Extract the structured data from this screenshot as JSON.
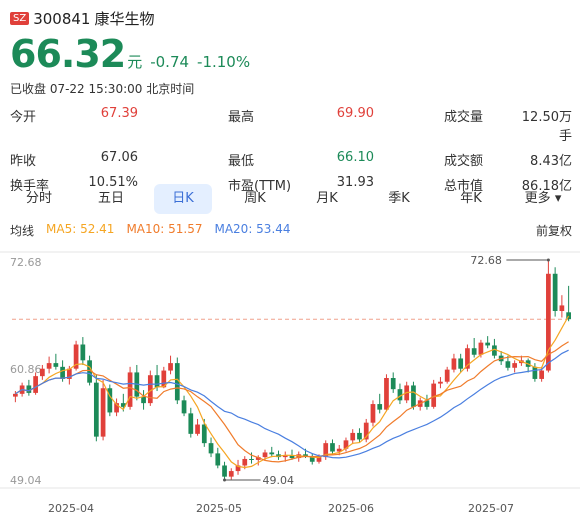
{
  "stock": {
    "market_badge": "SZ",
    "code": "300841",
    "name": "康华生物",
    "price": "66.32",
    "unit": "元",
    "change": "-0.74",
    "change_pct": "-1.10%",
    "status": "已收盘 07-22 15:30:00 北京时间"
  },
  "stats": [
    {
      "label": "今开",
      "value": "67.39",
      "color": "red"
    },
    {
      "label": "最高",
      "value": "69.90",
      "color": "red"
    },
    {
      "label": "成交量",
      "value": "12.50万手",
      "color": ""
    },
    {
      "label": "昨收",
      "value": "67.06",
      "color": ""
    },
    {
      "label": "最低",
      "value": "66.10",
      "color": "green"
    },
    {
      "label": "成交额",
      "value": "8.43亿",
      "color": ""
    },
    {
      "label": "换手率",
      "value": "10.51%",
      "color": ""
    },
    {
      "label": "市盈(TTM)",
      "value": "31.93",
      "color": ""
    },
    {
      "label": "总市值",
      "value": "86.18亿",
      "color": ""
    }
  ],
  "tabs": [
    "分时",
    "五日",
    "日K",
    "周K",
    "月K",
    "季K",
    "年K",
    "更多"
  ],
  "active_tab": "日K",
  "ma": {
    "title": "均线",
    "ma5": "MA5: 52.41",
    "ma10": "MA10: 51.57",
    "ma20": "MA20: 53.44",
    "adjust": "前复权",
    "colors": {
      "ma5": "#f5a623",
      "ma10": "#f07c2c",
      "ma20": "#4a7fe0"
    }
  },
  "chart_data": {
    "type": "candlestick",
    "y_max_label": "72.68",
    "y_mid_label": "60.86",
    "y_min_label": "49.04",
    "ylim": [
      49.04,
      72.68
    ],
    "high_marker": "72.68",
    "low_marker": "49.04",
    "x_ticks": [
      "2025-04",
      "2025-05",
      "2025-06",
      "2025-07"
    ],
    "last_close": 66.32,
    "colors": {
      "up": "#e0403a",
      "down": "#1c8a58"
    },
    "candles": [
      [
        58.0,
        58.6,
        57.4,
        58.3
      ],
      [
        58.3,
        59.5,
        58.0,
        59.2
      ],
      [
        59.2,
        59.8,
        58.1,
        58.4
      ],
      [
        58.4,
        60.6,
        58.2,
        60.2
      ],
      [
        60.2,
        61.4,
        59.8,
        61.0
      ],
      [
        61.0,
        62.3,
        60.5,
        61.6
      ],
      [
        61.6,
        62.6,
        60.9,
        61.2
      ],
      [
        61.2,
        61.9,
        59.6,
        59.9
      ],
      [
        59.9,
        61.3,
        59.3,
        61.0
      ],
      [
        61.0,
        64.0,
        60.8,
        63.6
      ],
      [
        63.6,
        64.4,
        61.4,
        61.9
      ],
      [
        61.9,
        62.4,
        59.2,
        59.5
      ],
      [
        59.5,
        60.4,
        53.2,
        53.7
      ],
      [
        53.7,
        59.8,
        53.3,
        58.9
      ],
      [
        58.9,
        59.3,
        55.9,
        56.3
      ],
      [
        56.3,
        57.8,
        55.9,
        57.3
      ],
      [
        57.3,
        58.3,
        56.4,
        56.9
      ],
      [
        56.9,
        61.2,
        56.6,
        60.6
      ],
      [
        60.6,
        61.4,
        57.6,
        58.0
      ],
      [
        58.0,
        58.7,
        56.6,
        57.3
      ],
      [
        57.3,
        60.8,
        57.0,
        60.3
      ],
      [
        60.3,
        61.4,
        58.6,
        59.0
      ],
      [
        59.0,
        61.2,
        58.9,
        60.8
      ],
      [
        60.8,
        62.4,
        60.4,
        61.6
      ],
      [
        61.6,
        62.2,
        57.2,
        57.6
      ],
      [
        57.6,
        58.1,
        55.9,
        56.2
      ],
      [
        56.2,
        56.8,
        53.6,
        54.0
      ],
      [
        54.0,
        55.6,
        53.8,
        55.0
      ],
      [
        55.0,
        55.6,
        52.6,
        53.0
      ],
      [
        53.0,
        53.6,
        51.5,
        51.9
      ],
      [
        51.9,
        52.5,
        50.3,
        50.6
      ],
      [
        50.6,
        51.0,
        49.04,
        49.4
      ],
      [
        49.4,
        50.3,
        49.1,
        50.0
      ],
      [
        50.0,
        51.2,
        49.6,
        50.6
      ],
      [
        50.6,
        51.6,
        50.2,
        51.3
      ],
      [
        51.3,
        52.0,
        50.8,
        51.2
      ],
      [
        51.2,
        51.7,
        50.6,
        51.5
      ],
      [
        51.5,
        52.3,
        51.1,
        52.0
      ],
      [
        52.0,
        52.6,
        51.5,
        51.8
      ],
      [
        51.8,
        52.2,
        51.2,
        51.5
      ],
      [
        51.5,
        52.1,
        51.0,
        51.7
      ],
      [
        51.7,
        52.3,
        51.2,
        51.4
      ],
      [
        51.4,
        52.1,
        51.0,
        51.8
      ],
      [
        51.8,
        52.4,
        51.4,
        51.6
      ],
      [
        51.6,
        51.9,
        50.7,
        51.0
      ],
      [
        51.0,
        51.8,
        50.8,
        51.5
      ],
      [
        51.5,
        53.3,
        51.2,
        53.0
      ],
      [
        53.0,
        53.4,
        51.8,
        52.1
      ],
      [
        52.1,
        52.8,
        51.7,
        52.4
      ],
      [
        52.4,
        53.6,
        52.1,
        53.3
      ],
      [
        53.3,
        54.5,
        52.9,
        54.1
      ],
      [
        54.1,
        54.6,
        53.1,
        53.4
      ],
      [
        53.4,
        55.6,
        53.1,
        55.2
      ],
      [
        55.2,
        57.6,
        54.8,
        57.2
      ],
      [
        57.2,
        58.3,
        56.2,
        56.6
      ],
      [
        56.6,
        60.4,
        56.4,
        60.0
      ],
      [
        60.0,
        60.6,
        58.4,
        58.8
      ],
      [
        58.8,
        59.4,
        57.2,
        57.6
      ],
      [
        57.6,
        59.6,
        57.3,
        59.2
      ],
      [
        59.2,
        59.6,
        56.6,
        56.9
      ],
      [
        56.9,
        57.9,
        56.5,
        57.6
      ],
      [
        57.6,
        58.2,
        56.6,
        56.9
      ],
      [
        56.9,
        59.8,
        56.7,
        59.4
      ],
      [
        59.4,
        60.1,
        58.9,
        59.6
      ],
      [
        59.6,
        61.2,
        59.4,
        60.9
      ],
      [
        60.9,
        62.6,
        60.6,
        62.1
      ],
      [
        62.1,
        62.6,
        60.6,
        61.0
      ],
      [
        61.0,
        63.6,
        60.7,
        63.2
      ],
      [
        63.2,
        64.3,
        62.2,
        62.5
      ],
      [
        62.5,
        64.1,
        62.2,
        63.8
      ],
      [
        63.8,
        64.5,
        63.2,
        63.5
      ],
      [
        63.5,
        64.2,
        62.1,
        62.4
      ],
      [
        62.4,
        62.9,
        61.4,
        61.8
      ],
      [
        61.8,
        62.4,
        60.8,
        61.1
      ],
      [
        61.1,
        61.9,
        60.6,
        61.6
      ],
      [
        61.6,
        62.4,
        61.3,
        61.9
      ],
      [
        61.9,
        62.1,
        60.6,
        61.2
      ],
      [
        61.2,
        61.6,
        59.6,
        59.9
      ],
      [
        59.9,
        61.2,
        59.6,
        60.8
      ],
      [
        60.8,
        72.68,
        60.6,
        71.2
      ],
      [
        71.2,
        71.9,
        66.6,
        67.2
      ],
      [
        67.2,
        68.9,
        66.5,
        67.8
      ],
      [
        67.06,
        69.9,
        66.1,
        66.32
      ]
    ]
  }
}
